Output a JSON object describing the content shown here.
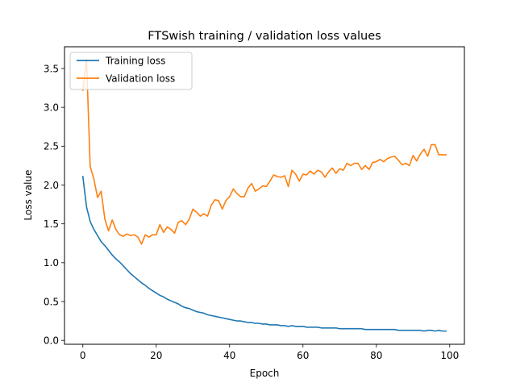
{
  "chart_data": {
    "type": "line",
    "title": "FTSwish training / validation loss values",
    "xlabel": "Epoch",
    "ylabel": "Loss value",
    "xlim": [
      -5,
      104
    ],
    "ylim": [
      -0.05,
      3.78
    ],
    "xticks": [
      0,
      20,
      40,
      60,
      80,
      100
    ],
    "yticks": [
      0.0,
      0.5,
      1.0,
      1.5,
      2.0,
      2.5,
      3.0,
      3.5
    ],
    "grid": false,
    "legend_position": "top-left",
    "series": [
      {
        "name": "Training loss",
        "color": "#1f77b4",
        "x": [
          0,
          1,
          2,
          3,
          4,
          5,
          6,
          7,
          8,
          9,
          10,
          11,
          12,
          13,
          14,
          15,
          16,
          17,
          18,
          19,
          20,
          21,
          22,
          23,
          24,
          25,
          26,
          27,
          28,
          29,
          30,
          31,
          32,
          33,
          34,
          35,
          36,
          37,
          38,
          39,
          40,
          41,
          42,
          43,
          44,
          45,
          46,
          47,
          48,
          49,
          50,
          51,
          52,
          53,
          54,
          55,
          56,
          57,
          58,
          59,
          60,
          61,
          62,
          63,
          64,
          65,
          66,
          67,
          68,
          69,
          70,
          71,
          72,
          73,
          74,
          75,
          76,
          77,
          78,
          79,
          80,
          81,
          82,
          83,
          84,
          85,
          86,
          87,
          88,
          89,
          90,
          91,
          92,
          93,
          94,
          95,
          96,
          97,
          98,
          99
        ],
        "values": [
          2.11,
          1.72,
          1.53,
          1.43,
          1.35,
          1.27,
          1.22,
          1.16,
          1.1,
          1.05,
          1.01,
          0.96,
          0.91,
          0.86,
          0.82,
          0.78,
          0.74,
          0.71,
          0.67,
          0.64,
          0.61,
          0.58,
          0.56,
          0.53,
          0.51,
          0.49,
          0.47,
          0.44,
          0.42,
          0.41,
          0.39,
          0.37,
          0.36,
          0.35,
          0.33,
          0.32,
          0.31,
          0.3,
          0.29,
          0.28,
          0.27,
          0.26,
          0.25,
          0.25,
          0.24,
          0.23,
          0.23,
          0.22,
          0.22,
          0.21,
          0.21,
          0.2,
          0.2,
          0.2,
          0.19,
          0.19,
          0.18,
          0.19,
          0.18,
          0.18,
          0.18,
          0.17,
          0.17,
          0.17,
          0.17,
          0.16,
          0.16,
          0.16,
          0.16,
          0.16,
          0.15,
          0.15,
          0.15,
          0.15,
          0.15,
          0.15,
          0.15,
          0.14,
          0.14,
          0.14,
          0.14,
          0.14,
          0.14,
          0.14,
          0.14,
          0.14,
          0.13,
          0.13,
          0.13,
          0.13,
          0.13,
          0.13,
          0.13,
          0.12,
          0.13,
          0.13,
          0.12,
          0.13,
          0.12,
          0.12
        ]
      },
      {
        "name": "Validation loss",
        "color": "#ff7f0e",
        "x": [
          0,
          1,
          2,
          3,
          4,
          5,
          6,
          7,
          8,
          9,
          10,
          11,
          12,
          13,
          14,
          15,
          16,
          17,
          18,
          19,
          20,
          21,
          22,
          23,
          24,
          25,
          26,
          27,
          28,
          29,
          30,
          31,
          32,
          33,
          34,
          35,
          36,
          37,
          38,
          39,
          40,
          41,
          42,
          43,
          44,
          45,
          46,
          47,
          48,
          49,
          50,
          51,
          52,
          53,
          54,
          55,
          56,
          57,
          58,
          59,
          60,
          61,
          62,
          63,
          64,
          65,
          66,
          67,
          68,
          69,
          70,
          71,
          72,
          73,
          74,
          75,
          76,
          77,
          78,
          79,
          80,
          81,
          82,
          83,
          84,
          85,
          86,
          87,
          88,
          89,
          90,
          91,
          92,
          93,
          94,
          95,
          96,
          97,
          98,
          99
        ],
        "values": [
          3.22,
          3.62,
          2.24,
          2.08,
          1.84,
          1.92,
          1.56,
          1.41,
          1.55,
          1.43,
          1.36,
          1.34,
          1.37,
          1.35,
          1.36,
          1.33,
          1.24,
          1.36,
          1.33,
          1.36,
          1.36,
          1.49,
          1.39,
          1.46,
          1.43,
          1.38,
          1.52,
          1.54,
          1.49,
          1.56,
          1.69,
          1.65,
          1.6,
          1.63,
          1.6,
          1.74,
          1.81,
          1.8,
          1.69,
          1.8,
          1.85,
          1.95,
          1.89,
          1.85,
          1.85,
          1.96,
          2.02,
          1.92,
          1.95,
          1.99,
          1.98,
          2.05,
          2.13,
          2.11,
          2.1,
          2.12,
          1.98,
          2.19,
          2.14,
          2.05,
          2.14,
          2.13,
          2.18,
          2.14,
          2.19,
          2.17,
          2.1,
          2.17,
          2.22,
          2.15,
          2.21,
          2.19,
          2.28,
          2.25,
          2.28,
          2.28,
          2.2,
          2.25,
          2.2,
          2.29,
          2.3,
          2.33,
          2.3,
          2.34,
          2.36,
          2.37,
          2.32,
          2.26,
          2.28,
          2.25,
          2.38,
          2.31,
          2.4,
          2.46,
          2.37,
          2.52,
          2.52,
          2.39,
          2.39,
          2.39
        ]
      }
    ]
  }
}
